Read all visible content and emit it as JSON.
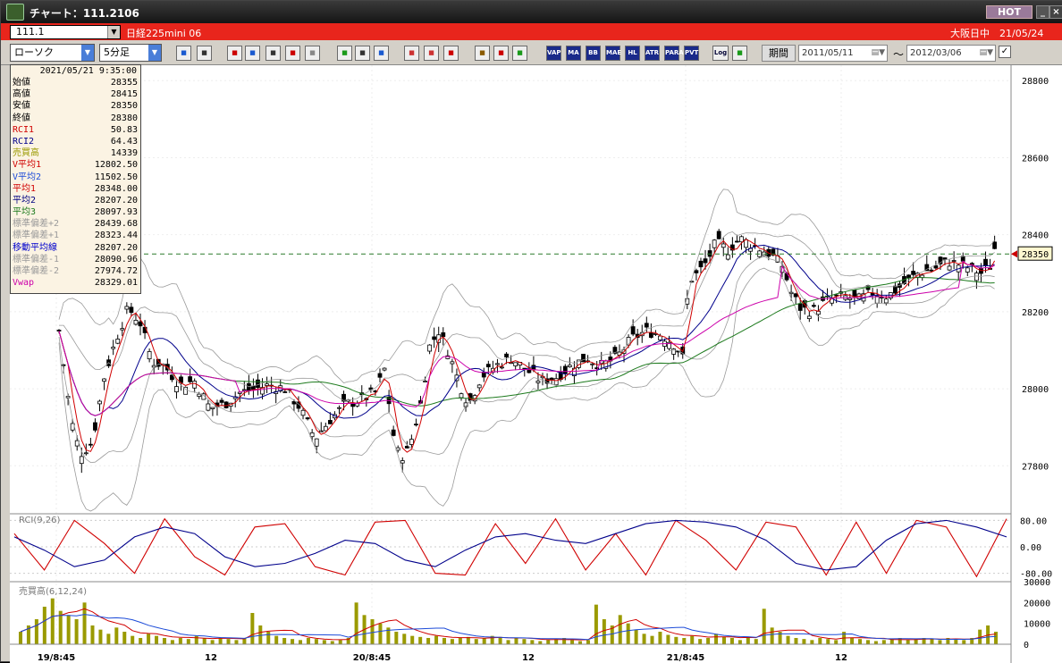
{
  "window": {
    "title": "チャート：111.2106",
    "hot_label": "HOT",
    "minimize": "_",
    "close": "×"
  },
  "symbol_bar": {
    "symbol": "111.1",
    "instrument": "日経225mini 06",
    "market": "大阪日中　21/05/24"
  },
  "toolbar": {
    "chart_type": "ローソク",
    "interval": "5分足",
    "icons": [
      "search-icon",
      "layout-icon",
      "download-icon",
      "zoom-icon",
      "bar-icon",
      "candle-icon",
      "alert-icon",
      "pencil-icon",
      "cursor-icon",
      "arrow-icon",
      "box-icon",
      "box2-icon",
      "all-icon",
      "settings-icon",
      "wrench-icon",
      "palette-icon"
    ],
    "indicators": [
      "VAP",
      "MA",
      "BB",
      "MAE",
      "HL",
      "ATR",
      "PARA",
      "PVT"
    ],
    "log_label": "Log",
    "period_label": "期間",
    "date_from": "2011/05/11",
    "date_to": "2012/03/06",
    "tilde": "～",
    "apply_check": "✓"
  },
  "info": {
    "datetime": "2021/05/21 9:35:00",
    "rows": [
      {
        "label": "始値",
        "value": "28355",
        "color": "#000"
      },
      {
        "label": "高値",
        "value": "28415",
        "color": "#000"
      },
      {
        "label": "安値",
        "value": "28350",
        "color": "#000"
      },
      {
        "label": "終値",
        "value": "28380",
        "color": "#000"
      },
      {
        "label": "RCI1",
        "value": "50.83",
        "color": "#d00000"
      },
      {
        "label": "RCI2",
        "value": "64.43",
        "color": "#00008b"
      },
      {
        "label": "売買高",
        "value": "14339",
        "color": "#9a9a00"
      },
      {
        "label": "V平均1",
        "value": "12802.50",
        "color": "#d00000"
      },
      {
        "label": "V平均2",
        "value": "11502.50",
        "color": "#1c4bd8"
      },
      {
        "label": "平均1",
        "value": "28348.00",
        "color": "#d00000"
      },
      {
        "label": "平均2",
        "value": "28207.20",
        "color": "#000080"
      },
      {
        "label": "平均3",
        "value": "28097.93",
        "color": "#1d7a1d"
      },
      {
        "label": "標準偏差+2",
        "value": "28439.68",
        "color": "#9a9a9a"
      },
      {
        "label": "標準偏差+1",
        "value": "28323.44",
        "color": "#9a9a9a"
      },
      {
        "label": "移動平均線",
        "value": "28207.20",
        "color": "#0000cc"
      },
      {
        "label": "標準偏差-1",
        "value": "28090.96",
        "color": "#9a9a9a"
      },
      {
        "label": "標準偏差-2",
        "value": "27974.72",
        "color": "#9a9a9a"
      },
      {
        "label": "Vwap",
        "value": "28329.01",
        "color": "#cc00aa"
      }
    ]
  },
  "panes": {
    "rci_label": "RCI(9,26)",
    "volume_label": "売買高(6,12,24)"
  },
  "colors": {
    "up": "#000000",
    "down": "#000000",
    "ma1": "#d00000",
    "ma2": "#00008b",
    "ma3": "#1d7a1d",
    "bb": "#9a9a9a",
    "vwap": "#cc00aa",
    "dashed": "#2a7a2a",
    "volume": "#9a9a00"
  },
  "chart_data": [
    {
      "type": "candlestick",
      "title": "",
      "x_tick_labels": [
        "19/8:45",
        "12",
        "20/8:45",
        "12",
        "21/8:45",
        "12"
      ],
      "ylim": [
        27680,
        28840
      ],
      "y_ticks": [
        28800,
        28600,
        28400,
        28200,
        28000,
        27800
      ],
      "last_price_label": "28350",
      "close_path": [
        [
          0,
          28150
        ],
        [
          8,
          27920
        ],
        [
          14,
          27830
        ],
        [
          22,
          27860
        ],
        [
          30,
          28030
        ],
        [
          38,
          28130
        ],
        [
          46,
          28210
        ],
        [
          54,
          28170
        ],
        [
          62,
          28070
        ],
        [
          70,
          28060
        ],
        [
          80,
          28010
        ],
        [
          90,
          28020
        ],
        [
          100,
          27950
        ],
        [
          110,
          27960
        ],
        [
          120,
          27990
        ],
        [
          130,
          28000
        ],
        [
          140,
          28010
        ],
        [
          150,
          28000
        ],
        [
          160,
          27950
        ],
        [
          170,
          27870
        ],
        [
          180,
          27920
        ],
        [
          190,
          27960
        ],
        [
          200,
          27970
        ],
        [
          210,
          27990
        ],
        [
          216,
          28050
        ],
        [
          222,
          27880
        ],
        [
          226,
          27820
        ],
        [
          232,
          27840
        ],
        [
          240,
          27960
        ],
        [
          246,
          28110
        ],
        [
          252,
          28150
        ],
        [
          258,
          28100
        ],
        [
          266,
          28010
        ],
        [
          272,
          27960
        ],
        [
          280,
          28030
        ],
        [
          290,
          28060
        ],
        [
          300,
          28080
        ],
        [
          310,
          28050
        ],
        [
          320,
          28020
        ],
        [
          330,
          28030
        ],
        [
          340,
          28060
        ],
        [
          350,
          28080
        ],
        [
          360,
          28060
        ],
        [
          370,
          28080
        ],
        [
          380,
          28130
        ],
        [
          390,
          28150
        ],
        [
          400,
          28140
        ],
        [
          410,
          28110
        ],
        [
          414,
          28080
        ],
        [
          418,
          28280
        ],
        [
          424,
          28300
        ],
        [
          430,
          28330
        ],
        [
          436,
          28380
        ],
        [
          444,
          28360
        ],
        [
          452,
          28390
        ],
        [
          462,
          28370
        ],
        [
          472,
          28350
        ],
        [
          480,
          28320
        ],
        [
          486,
          28250
        ],
        [
          492,
          28210
        ],
        [
          500,
          28200
        ],
        [
          510,
          28230
        ],
        [
          520,
          28240
        ],
        [
          530,
          28230
        ],
        [
          540,
          28250
        ],
        [
          550,
          28240
        ],
        [
          560,
          28270
        ],
        [
          570,
          28300
        ],
        [
          580,
          28310
        ],
        [
          590,
          28330
        ],
        [
          600,
          28320
        ],
        [
          606,
          28310
        ],
        [
          612,
          28300
        ],
        [
          618,
          28320
        ],
        [
          622,
          28380
        ]
      ]
    },
    {
      "type": "line",
      "title": "RCI(9,26)",
      "ylim": [
        -100,
        100
      ],
      "y_ticks": [
        80,
        0,
        -80
      ],
      "series": [
        {
          "name": "RCI1",
          "values": [
            40,
            -70,
            80,
            10,
            -80,
            85,
            -30,
            -85,
            60,
            70,
            -60,
            -85,
            75,
            80,
            -80,
            -85,
            70,
            -50,
            85,
            -70,
            40,
            -85,
            80,
            20,
            -70,
            75,
            60,
            -85,
            75,
            -80,
            80,
            60,
            -90,
            85
          ]
        },
        {
          "name": "RCI2",
          "values": [
            30,
            -10,
            -60,
            -40,
            30,
            60,
            40,
            -30,
            -60,
            -50,
            -20,
            20,
            10,
            -40,
            -60,
            -10,
            30,
            40,
            20,
            10,
            40,
            70,
            80,
            75,
            60,
            20,
            -50,
            -70,
            -60,
            20,
            70,
            80,
            60,
            30
          ]
        }
      ]
    },
    {
      "type": "bar",
      "title": "売買高(6,12,24)",
      "ylim": [
        0,
        30000
      ],
      "y_ticks": [
        30000,
        20000,
        10000,
        0
      ],
      "series": [
        {
          "name": "売買高",
          "values": [
            6000,
            9000,
            12000,
            18000,
            22000,
            16000,
            14000,
            12000,
            20000,
            9000,
            7000,
            5000,
            8000,
            6000,
            4000,
            3000,
            5000,
            4000,
            3000,
            2000,
            3000,
            2500,
            4000,
            3000,
            2000,
            3000,
            2500,
            2000,
            3000,
            15000,
            9000,
            6000,
            4000,
            3000,
            2500,
            2000,
            3000,
            2500,
            2000,
            1500,
            2000,
            3000,
            20000,
            14000,
            12000,
            10000,
            8000,
            6000,
            5000,
            4000,
            3500,
            3000,
            4000,
            3000,
            2500,
            3000,
            3500,
            2500,
            3000,
            4000,
            3500,
            2000,
            3000,
            2500,
            2000,
            1500,
            2000,
            2500,
            3000,
            2000,
            1500,
            2000,
            19000,
            12000,
            9000,
            14000,
            10000,
            7000,
            5000,
            4000,
            6000,
            4500,
            3500,
            3000,
            4000,
            2500,
            3000,
            5000,
            3500,
            3000,
            2000,
            3000,
            2500,
            17000,
            8000,
            6000,
            4000,
            3000,
            2500,
            2000,
            3000,
            2500,
            2000,
            6000,
            3000,
            2500,
            2000,
            1500,
            2000,
            2500,
            3000,
            2000,
            2500,
            3000,
            2500,
            2000,
            3000,
            2500,
            2000,
            3000,
            7000,
            9000,
            6000
          ]
        }
      ]
    }
  ]
}
